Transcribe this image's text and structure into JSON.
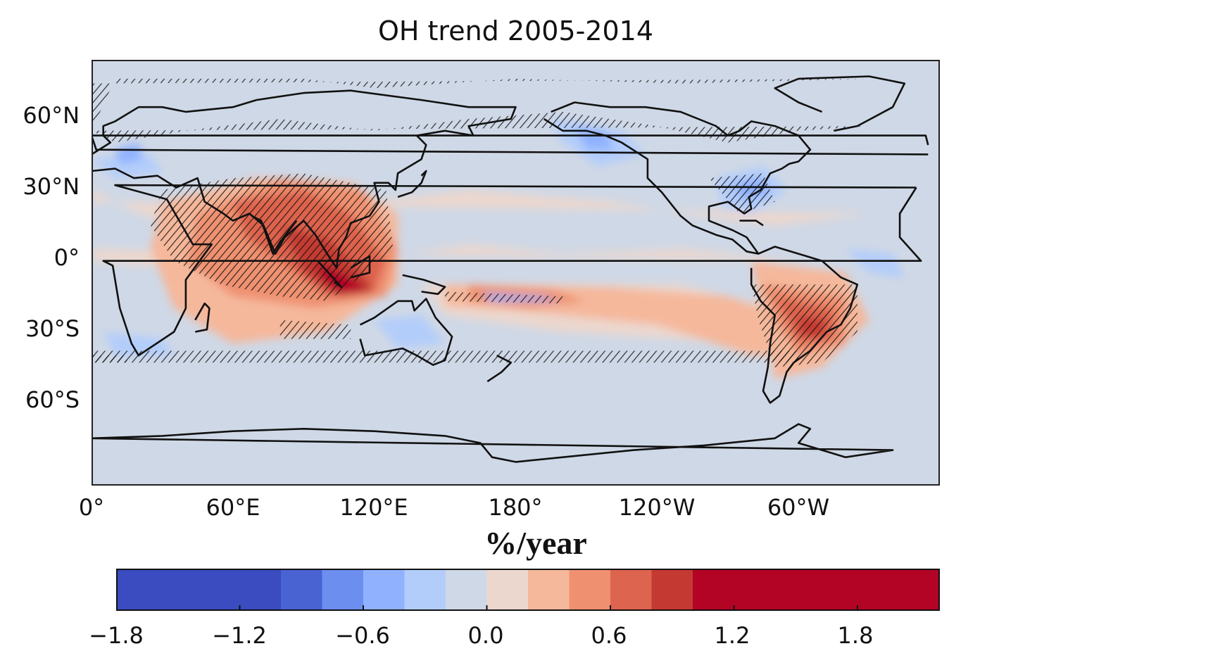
{
  "figure": {
    "title": "OH trend 2005-2014",
    "lat_ticks": [
      "60°N",
      "30°N",
      "0°",
      "30°S",
      "60°S"
    ],
    "lon_ticks": [
      "0°",
      "60°E",
      "120°E",
      "180°",
      "120°W",
      "60°W"
    ],
    "colorbar_label": "%/year",
    "colorbar_ticks": [
      "−1.8",
      "−1.2",
      "−0.6",
      "0.0",
      "0.6",
      "1.2",
      "1.8"
    ],
    "colorbar_colors": [
      "#3a4cc0",
      "#4a63d3",
      "#6b8eef",
      "#90b2fe",
      "#b3cdfb",
      "#cfd8e6",
      "#ecd7ce",
      "#f5b89b",
      "#ef9171",
      "#dd644e",
      "#c43a32",
      "#b40426"
    ],
    "colorbar_boundaries": [
      -1.8,
      -1.0,
      -0.8,
      -0.6,
      -0.4,
      -0.2,
      0.0,
      0.2,
      0.4,
      0.6,
      0.8,
      1.0,
      2.2
    ],
    "hatching_meaning": "",
    "projection": "PlateCarree, central longitude 180"
  }
}
